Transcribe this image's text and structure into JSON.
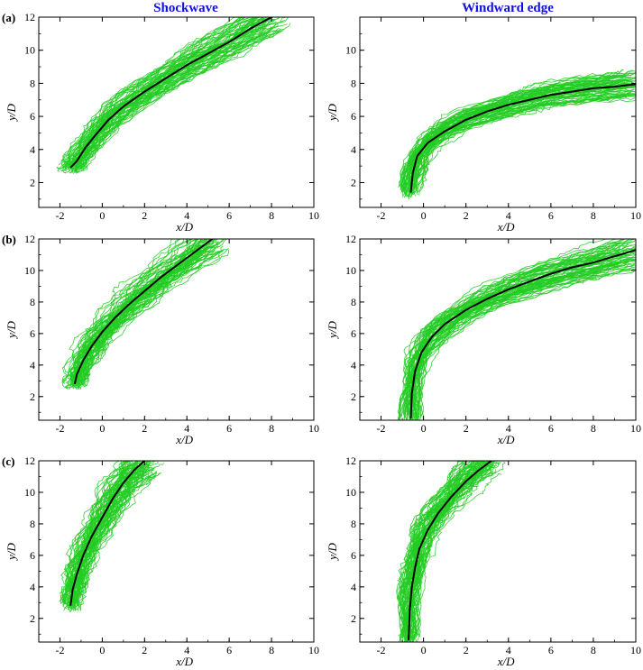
{
  "column_titles": [
    "Shockwave",
    "Windward edge"
  ],
  "row_labels": [
    "(a)",
    "(b)",
    "(c)"
  ],
  "colors": {
    "title": "#1010e0",
    "ensemble": "#22cc22",
    "mean": "#000000",
    "axes": "#000000"
  },
  "chart_data": [
    {
      "type": "line",
      "row": "(a)",
      "column": "Shockwave",
      "title": "Shockwave",
      "xlabel": "x/D",
      "ylabel": "y/D",
      "xlim": [
        -3,
        10
      ],
      "ylim": [
        0.5,
        12
      ],
      "xticks": [
        -2,
        0,
        2,
        4,
        6,
        8,
        10
      ],
      "yticks": [
        2,
        4,
        6,
        8,
        10,
        12
      ],
      "series": [
        {
          "role": "mean",
          "x": [
            -1.5,
            -1.2,
            -0.8,
            -0.3,
            0.3,
            1,
            2,
            3,
            4,
            5,
            6,
            7,
            8
          ],
          "y": [
            2.9,
            3.3,
            4.1,
            4.9,
            5.8,
            6.6,
            7.5,
            8.3,
            9.1,
            9.8,
            10.5,
            11.3,
            12
          ]
        }
      ],
      "ensemble": {
        "color": "green",
        "spread_x": 0.6,
        "spread_y": 0.9
      }
    },
    {
      "type": "line",
      "row": "(a)",
      "column": "Windward edge",
      "title": "Windward edge",
      "xlabel": "x/D",
      "ylabel": "y/D",
      "xlim": [
        -3,
        10
      ],
      "ylim": [
        0.5,
        12
      ],
      "xticks": [
        -2,
        0,
        2,
        4,
        6,
        8,
        10
      ],
      "yticks": [
        2,
        4,
        6,
        8,
        10
      ],
      "series": [
        {
          "role": "mean",
          "x": [
            -0.6,
            -0.5,
            -0.3,
            0.2,
            1,
            2,
            3,
            4,
            5,
            6,
            7,
            8,
            9,
            10
          ],
          "y": [
            1.4,
            2.6,
            3.6,
            4.4,
            5.1,
            5.8,
            6.3,
            6.7,
            7,
            7.3,
            7.5,
            7.7,
            7.8,
            7.95
          ]
        }
      ],
      "ensemble": {
        "color": "green",
        "spread_x": 0.5,
        "spread_y": 0.9
      }
    },
    {
      "type": "line",
      "row": "(b)",
      "column": "Shockwave",
      "xlabel": "x/D",
      "ylabel": "y/D",
      "xlim": [
        -3,
        10
      ],
      "ylim": [
        0.5,
        12
      ],
      "xticks": [
        -2,
        0,
        2,
        4,
        6,
        8,
        10
      ],
      "yticks": [
        2,
        4,
        6,
        8,
        10,
        12
      ],
      "series": [
        {
          "role": "mean",
          "x": [
            -1.3,
            -1.2,
            -0.9,
            -0.5,
            0,
            0.6,
            1.3,
            2,
            2.8,
            3.6,
            4.4,
            5.2
          ],
          "y": [
            2.8,
            3.4,
            4.3,
            5.2,
            6.1,
            7,
            7.9,
            8.7,
            9.6,
            10.4,
            11.2,
            12
          ]
        }
      ],
      "ensemble": {
        "color": "green",
        "spread_x": 0.6,
        "spread_y": 0.9
      }
    },
    {
      "type": "line",
      "row": "(b)",
      "column": "Windward edge",
      "xlabel": "x/D",
      "ylabel": "y/D",
      "xlim": [
        -3,
        10
      ],
      "ylim": [
        0.5,
        12
      ],
      "xticks": [
        -2,
        0,
        2,
        4,
        6,
        8,
        10
      ],
      "yticks": [
        2,
        4,
        6,
        8,
        10,
        12
      ],
      "series": [
        {
          "role": "mean",
          "x": [
            -0.6,
            -0.55,
            -0.4,
            -0.1,
            0.4,
            1,
            2,
            3,
            4,
            5,
            6,
            7,
            8,
            9,
            10
          ],
          "y": [
            0.6,
            2.2,
            3.6,
            4.8,
            5.8,
            6.6,
            7.5,
            8.2,
            8.8,
            9.3,
            9.8,
            10.2,
            10.5,
            10.9,
            11.3
          ]
        }
      ],
      "ensemble": {
        "color": "green",
        "spread_x": 0.6,
        "spread_y": 1.1
      }
    },
    {
      "type": "line",
      "row": "(c)",
      "column": "Shockwave",
      "xlabel": "x/D",
      "ylabel": "y/D",
      "xlim": [
        -3,
        10
      ],
      "ylim": [
        0.5,
        12
      ],
      "xticks": [
        -2,
        0,
        2,
        4,
        6,
        8,
        10
      ],
      "yticks": [
        2,
        4,
        6,
        8,
        10,
        12
      ],
      "series": [
        {
          "role": "mean",
          "x": [
            -1.5,
            -1.4,
            -1.2,
            -0.9,
            -0.5,
            0,
            0.5,
            1,
            1.5,
            2
          ],
          "y": [
            2.8,
            3.8,
            4.8,
            6,
            7.2,
            8.4,
            9.6,
            10.6,
            11.4,
            12
          ]
        }
      ],
      "ensemble": {
        "color": "green",
        "spread_x": 0.5,
        "spread_y": 0.9
      }
    },
    {
      "type": "line",
      "row": "(c)",
      "column": "Windward edge",
      "xlabel": "x/D",
      "ylabel": "y/D",
      "xlim": [
        -3,
        10
      ],
      "ylim": [
        0.5,
        12
      ],
      "xticks": [
        -2,
        0,
        2,
        4,
        6,
        8,
        10
      ],
      "yticks": [
        2,
        4,
        6,
        8,
        10,
        12
      ],
      "series": [
        {
          "role": "mean",
          "x": [
            -0.7,
            -0.65,
            -0.55,
            -0.4,
            -0.2,
            0.2,
            0.7,
            1.3,
            2,
            2.6,
            3.2
          ],
          "y": [
            0.6,
            2.5,
            4,
            5.2,
            6.4,
            7.6,
            8.7,
            9.7,
            10.7,
            11.4,
            12
          ]
        }
      ],
      "ensemble": {
        "color": "green",
        "spread_x": 0.5,
        "spread_y": 0.8
      }
    }
  ]
}
